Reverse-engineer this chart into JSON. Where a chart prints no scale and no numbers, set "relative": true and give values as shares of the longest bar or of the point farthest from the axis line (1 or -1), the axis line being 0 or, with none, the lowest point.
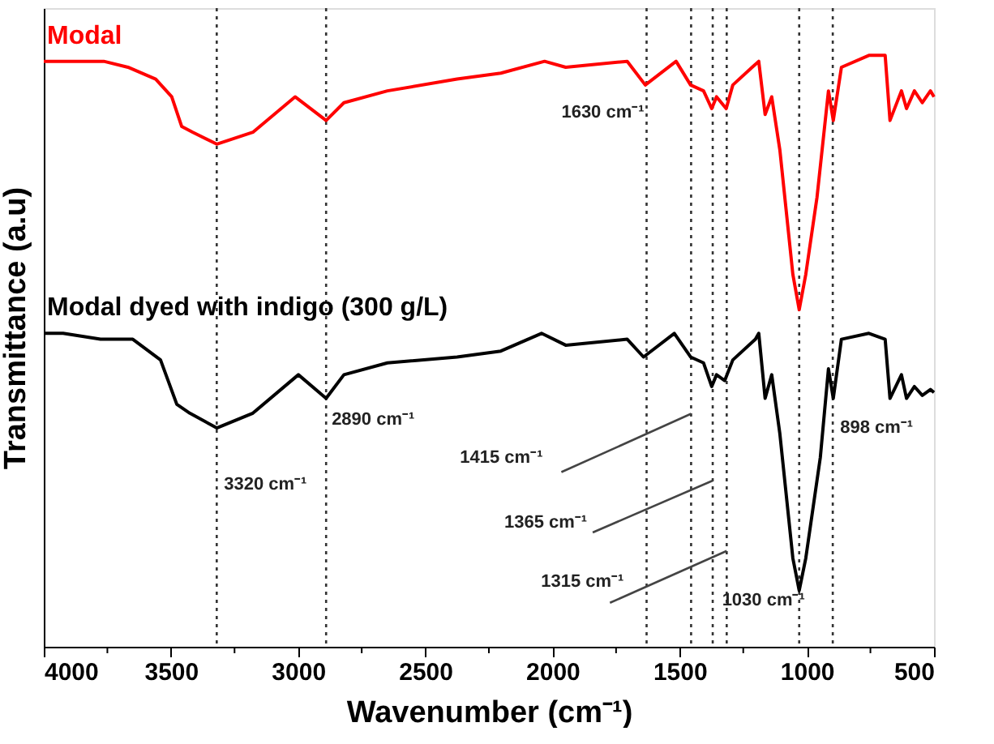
{
  "chart_data": {
    "type": "line",
    "relative": true,
    "xlabel": "Wavenumber (cm⁻¹)",
    "ylabel": "Transmittance (a.u)",
    "xlim": [
      4000,
      500
    ],
    "xticks": [
      4000,
      {
        "value": 3750,
        "label": null
      },
      3500,
      {
        "value": 3250,
        "label": null
      },
      3000,
      {
        "value": 2750,
        "label": null
      },
      2500,
      {
        "value": 2250,
        "label": null
      },
      2000,
      {
        "value": 1750,
        "label": null
      },
      1500,
      {
        "value": 1250,
        "label": null
      },
      1000,
      {
        "value": 750,
        "label": null
      },
      500
    ],
    "grid": false,
    "legend": false,
    "line_style": "solid",
    "marker": "none",
    "series": [
      {
        "name": "Modal",
        "color": "#ff0000",
        "x": [
          4000,
          3924,
          3764,
          3669,
          3560,
          3497,
          3458,
          3414,
          3320,
          3178,
          3012,
          2890,
          2820,
          2649,
          2375,
          2203,
          2031,
          1948,
          1706,
          1635,
          1514,
          1457,
          1406,
          1374,
          1355,
          1317,
          1291,
          1215,
          1189,
          1164,
          1138,
          1106,
          1055,
          1030,
          1004,
          960,
          915,
          896,
          864,
          756,
          692,
          673,
          628,
          608,
          577,
          546,
          514,
          500
        ],
        "values": [
          0.99,
          0.99,
          0.99,
          0.98,
          0.96,
          0.93,
          0.88,
          0.87,
          0.85,
          0.87,
          0.93,
          0.89,
          0.92,
          0.94,
          0.96,
          0.97,
          0.99,
          0.98,
          0.99,
          0.95,
          0.99,
          0.95,
          0.94,
          0.91,
          0.93,
          0.91,
          0.95,
          0.98,
          0.99,
          0.9,
          0.93,
          0.84,
          0.63,
          0.57,
          0.63,
          0.76,
          0.94,
          0.89,
          0.98,
          1.0,
          1.0,
          0.89,
          0.94,
          0.91,
          0.94,
          0.92,
          0.94,
          0.93
        ]
      },
      {
        "name": "Modal dyed with indigo (300 g/L)",
        "color": "#000000",
        "x": [
          4000,
          3924,
          3777,
          3650,
          3541,
          3477,
          3426,
          3320,
          3178,
          2999,
          2890,
          2820,
          2649,
          2375,
          2203,
          2043,
          1948,
          1706,
          1642,
          1521,
          1457,
          1406,
          1374,
          1355,
          1323,
          1291,
          1202,
          1189,
          1164,
          1138,
          1106,
          1055,
          1030,
          1004,
          947,
          915,
          896,
          864,
          756,
          692,
          673,
          628,
          608,
          577,
          546,
          514,
          500
        ],
        "values": [
          0.53,
          0.53,
          0.52,
          0.52,
          0.485,
          0.41,
          0.395,
          0.37,
          0.395,
          0.46,
          0.42,
          0.46,
          0.48,
          0.49,
          0.5,
          0.53,
          0.51,
          0.52,
          0.49,
          0.53,
          0.49,
          0.48,
          0.44,
          0.46,
          0.45,
          0.485,
          0.52,
          0.53,
          0.42,
          0.46,
          0.36,
          0.15,
          0.095,
          0.15,
          0.32,
          0.47,
          0.42,
          0.52,
          0.53,
          0.52,
          0.42,
          0.46,
          0.42,
          0.44,
          0.425,
          0.435,
          0.43
        ]
      }
    ],
    "ref_lines": [
      {
        "axis": "x",
        "value": 3320,
        "color": "#333333",
        "line_style": "dotted"
      },
      {
        "axis": "x",
        "value": 2890,
        "color": "#333333",
        "line_style": "dotted"
      },
      {
        "axis": "x",
        "value": 1630,
        "color": "#333333",
        "line_style": "dotted"
      },
      {
        "axis": "x",
        "value": 1455,
        "color": "#333333",
        "line_style": "dotted"
      },
      {
        "axis": "x",
        "value": 1370,
        "color": "#333333",
        "line_style": "dotted"
      },
      {
        "axis": "x",
        "value": 1315,
        "color": "#333333",
        "line_style": "dotted"
      },
      {
        "axis": "x",
        "value": 1030,
        "color": "#333333",
        "line_style": "dotted"
      },
      {
        "axis": "x",
        "value": 898,
        "color": "#333333",
        "line_style": "dotted"
      }
    ],
    "annotations": [
      {
        "text": "1630 cm⁻¹",
        "x": 1630,
        "y": 0.95
      },
      {
        "text": "2890 cm⁻¹",
        "x": 2890,
        "y": 0.42
      },
      {
        "text": "3320 cm⁻¹",
        "x": 3320,
        "y": 0.37
      },
      {
        "text": "1415 cm⁻¹",
        "x": 1455,
        "y": 0.394
      },
      {
        "text": "1365 cm⁻¹",
        "x": 1370,
        "y": 0.281
      },
      {
        "text": "1315 cm⁻¹",
        "x": 1315,
        "y": 0.162
      },
      {
        "text": "1030 cm⁻¹",
        "x": 1030,
        "y": 0.095
      },
      {
        "text": "898 cm⁻¹",
        "x": 898,
        "y": 0.42
      }
    ]
  }
}
